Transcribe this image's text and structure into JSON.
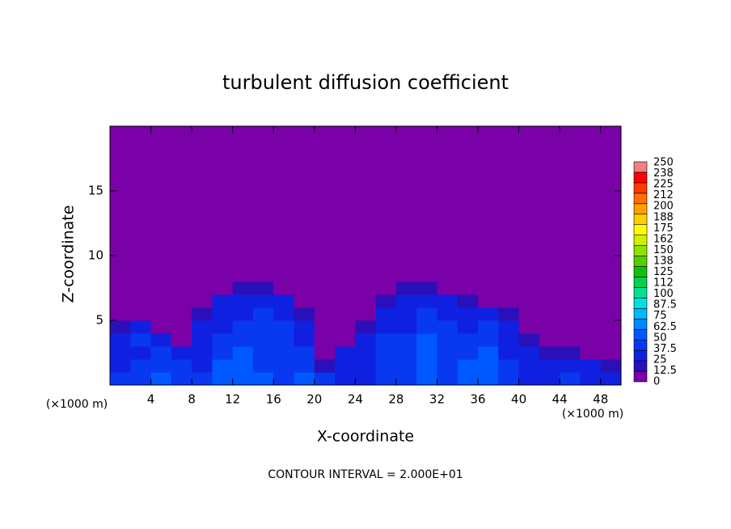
{
  "chart_data": {
    "type": "contour",
    "title": "turbulent diffusion coefficient",
    "x_label": "X-coordinate",
    "y_label": "Z-coordinate",
    "x_unit": "(×1000 m)",
    "footer": "CONTOUR INTERVAL = 2.000E+01",
    "xlim": [
      0,
      50
    ],
    "ylim": [
      0,
      20
    ],
    "xticks": [
      4,
      8,
      12,
      16,
      20,
      24,
      28,
      32,
      36,
      40,
      44,
      48
    ],
    "yticks": [
      5,
      10,
      15
    ],
    "colorbar": {
      "levels": [
        0,
        12.5,
        25,
        37.5,
        50,
        62.5,
        75,
        87.5,
        100,
        112,
        125,
        138,
        150,
        162,
        175,
        188,
        200,
        212,
        225,
        238,
        250
      ],
      "colors": [
        "#7a00a8",
        "#2a10b8",
        "#1020e0",
        "#0838f0",
        "#0058ff",
        "#0088ff",
        "#00b8ff",
        "#00e0e0",
        "#00e090",
        "#00d050",
        "#10c010",
        "#50d000",
        "#90e000",
        "#d0f000",
        "#ffff00",
        "#ffd000",
        "#ffa000",
        "#ff7000",
        "#ff3800",
        "#ff0000",
        "#f08080"
      ]
    },
    "field": {
      "x": [
        1,
        3,
        5,
        7,
        9,
        11,
        13,
        15,
        17,
        19,
        21,
        23,
        25,
        27,
        29,
        31,
        33,
        35,
        37,
        39,
        41,
        43,
        45,
        47,
        49
      ],
      "z": [
        0.5,
        1.5,
        2.5,
        3.5,
        4.5,
        5.5,
        6.5,
        7.5,
        8.5
      ],
      "values": [
        [
          40,
          45,
          50,
          45,
          40,
          55,
          60,
          50,
          45,
          50,
          45,
          35,
          30,
          40,
          45,
          50,
          45,
          55,
          60,
          40,
          35,
          30,
          40,
          35,
          30
        ],
        [
          35,
          40,
          45,
          40,
          35,
          50,
          55,
          45,
          40,
          45,
          20,
          30,
          35,
          40,
          45,
          50,
          45,
          50,
          55,
          40,
          35,
          30,
          30,
          25,
          20
        ],
        [
          30,
          35,
          40,
          35,
          30,
          45,
          50,
          45,
          40,
          40,
          5,
          25,
          30,
          40,
          45,
          50,
          40,
          45,
          50,
          35,
          30,
          20,
          15,
          10,
          5
        ],
        [
          25,
          40,
          30,
          10,
          25,
          40,
          45,
          45,
          40,
          35,
          0,
          0,
          25,
          40,
          40,
          50,
          40,
          40,
          45,
          30,
          20,
          5,
          0,
          0,
          0
        ],
        [
          20,
          35,
          5,
          10,
          25,
          35,
          40,
          45,
          40,
          30,
          0,
          0,
          20,
          35,
          35,
          45,
          40,
          35,
          40,
          25,
          5,
          0,
          0,
          0,
          0
        ],
        [
          0,
          0,
          0,
          5,
          15,
          30,
          35,
          40,
          35,
          20,
          0,
          0,
          10,
          30,
          30,
          40,
          35,
          30,
          30,
          15,
          0,
          0,
          0,
          0,
          0
        ],
        [
          0,
          0,
          0,
          0,
          5,
          25,
          30,
          35,
          25,
          5,
          0,
          0,
          0,
          20,
          25,
          30,
          25,
          20,
          5,
          0,
          0,
          0,
          0,
          0,
          0
        ],
        [
          0,
          0,
          0,
          0,
          0,
          10,
          20,
          20,
          10,
          0,
          0,
          0,
          0,
          0,
          15,
          20,
          10,
          0,
          0,
          0,
          0,
          0,
          0,
          0,
          0
        ],
        [
          0,
          0,
          0,
          0,
          0,
          0,
          5,
          5,
          0,
          0,
          0,
          0,
          0,
          0,
          0,
          0,
          0,
          0,
          0,
          0,
          0,
          0,
          0,
          0,
          0
        ]
      ]
    }
  }
}
